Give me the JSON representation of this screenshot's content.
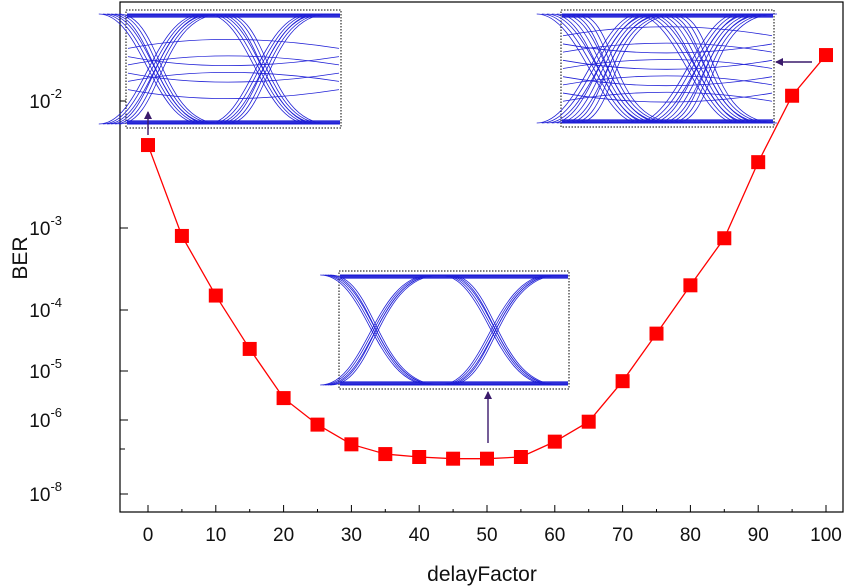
{
  "chart_data": {
    "type": "line",
    "title": "",
    "xlabel": "delayFactor",
    "ylabel": "BER",
    "xlim": [
      -4,
      102
    ],
    "x_ticks": [
      0,
      10,
      20,
      30,
      40,
      50,
      60,
      70,
      80,
      90,
      100
    ],
    "y_scale": "log",
    "y_ticks": [
      {
        "base": "10",
        "exp": "-2",
        "value": 0.01
      },
      {
        "base": "10",
        "exp": "-3",
        "value": 0.001
      },
      {
        "base": "10",
        "exp": "-4",
        "value": 0.0001
      },
      {
        "base": "10",
        "exp": "-5",
        "value": 1e-05
      },
      {
        "base": "10",
        "exp": "-6",
        "value": 1e-06
      },
      {
        "base": "10",
        "exp": "-8",
        "value": 1e-08
      }
    ],
    "series": [
      {
        "color": "#ff0000",
        "marker": "square",
        "x": [
          0,
          5,
          10,
          15,
          20,
          25,
          30,
          35,
          40,
          45,
          50,
          55,
          60,
          65,
          70,
          75,
          80,
          85,
          90,
          95,
          100
        ],
        "y": [
          0.0045,
          0.0008,
          0.00015,
          2.3e-05,
          2.8e-06,
          7.5e-07,
          2.2e-07,
          1.2e-07,
          1e-07,
          9e-08,
          9e-08,
          1e-07,
          2.6e-07,
          9e-07,
          6.2e-06,
          4.1e-05,
          0.0002,
          0.00075,
          0.0033,
          0.011,
          0.023
        ]
      }
    ],
    "insets": [
      {
        "name": "eye-diagram-delay-0",
        "points_to_x": 0
      },
      {
        "name": "eye-diagram-delay-50",
        "points_to_x": 50
      },
      {
        "name": "eye-diagram-delay-100",
        "points_to_x": 100
      }
    ],
    "colors": {
      "trace": "#1f1fd6",
      "arrow": "#3a1a6b",
      "axis": "#000000"
    }
  }
}
